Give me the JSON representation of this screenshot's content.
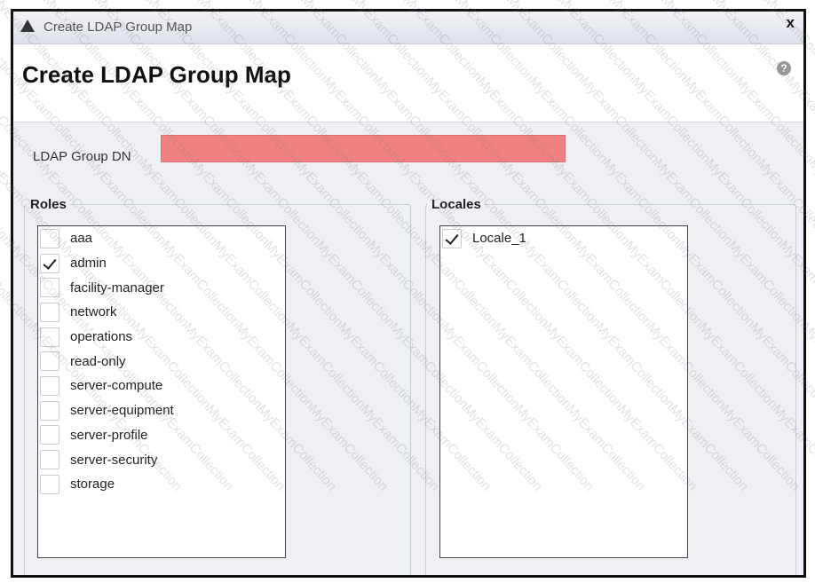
{
  "window": {
    "title": "Create LDAP Group Map",
    "close_label": "x",
    "icon": "warning-triangle-icon"
  },
  "heading": "Create LDAP Group Map",
  "help_icon": "question-circle-icon",
  "ldap_group_dn": {
    "label": "LDAP Group DN",
    "value": "",
    "highlight_color": "#f28282"
  },
  "roles": {
    "legend": "Roles",
    "items": [
      {
        "label": "aaa",
        "checked": false
      },
      {
        "label": "admin",
        "checked": true
      },
      {
        "label": "facility-manager",
        "checked": false
      },
      {
        "label": "network",
        "checked": false
      },
      {
        "label": "operations",
        "checked": false
      },
      {
        "label": "read-only",
        "checked": false
      },
      {
        "label": "server-compute",
        "checked": false
      },
      {
        "label": "server-equipment",
        "checked": false
      },
      {
        "label": "server-profile",
        "checked": false
      },
      {
        "label": "server-security",
        "checked": false
      },
      {
        "label": "storage",
        "checked": false
      }
    ]
  },
  "locales": {
    "legend": "Locales",
    "items": [
      {
        "label": "Locale_1",
        "checked": true
      }
    ]
  },
  "watermark": "MyExamCollection"
}
